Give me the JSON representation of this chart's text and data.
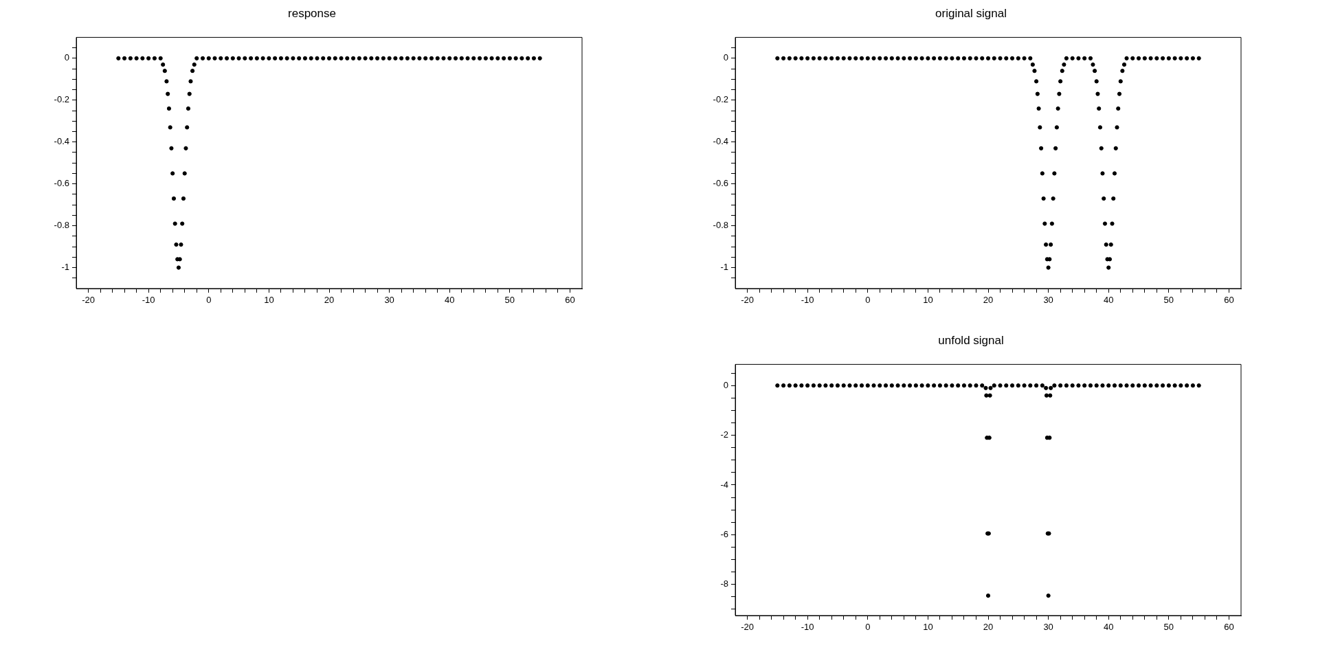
{
  "chart_data": [
    {
      "type": "scatter",
      "title": "response",
      "color": "#000000",
      "marker": "circle",
      "xlim": [
        -22,
        62
      ],
      "ylim": [
        -1.1,
        0.1
      ],
      "xticks": [
        -20,
        {
          "value": -18,
          "label": null
        },
        {
          "value": -16,
          "label": null
        },
        {
          "value": -14,
          "label": null
        },
        {
          "value": -12,
          "label": null
        },
        -10,
        {
          "value": -8,
          "label": null
        },
        {
          "value": -6,
          "label": null
        },
        {
          "value": -4,
          "label": null
        },
        {
          "value": -2,
          "label": null
        },
        0,
        {
          "value": 2,
          "label": null
        },
        {
          "value": 4,
          "label": null
        },
        {
          "value": 6,
          "label": null
        },
        {
          "value": 8,
          "label": null
        },
        10,
        {
          "value": 12,
          "label": null
        },
        {
          "value": 14,
          "label": null
        },
        {
          "value": 16,
          "label": null
        },
        {
          "value": 18,
          "label": null
        },
        20,
        {
          "value": 22,
          "label": null
        },
        {
          "value": 24,
          "label": null
        },
        {
          "value": 26,
          "label": null
        },
        {
          "value": 28,
          "label": null
        },
        30,
        {
          "value": 32,
          "label": null
        },
        {
          "value": 34,
          "label": null
        },
        {
          "value": 36,
          "label": null
        },
        {
          "value": 38,
          "label": null
        },
        40,
        {
          "value": 42,
          "label": null
        },
        {
          "value": 44,
          "label": null
        },
        {
          "value": 46,
          "label": null
        },
        {
          "value": 48,
          "label": null
        },
        50,
        {
          "value": 52,
          "label": null
        },
        {
          "value": 54,
          "label": null
        },
        {
          "value": 56,
          "label": null
        },
        {
          "value": 58,
          "label": null
        },
        60
      ],
      "yticks": [
        {
          "value": -1.05,
          "label": null
        },
        -1,
        {
          "value": -0.95,
          "label": null
        },
        {
          "value": -0.9,
          "label": null
        },
        {
          "value": -0.85,
          "label": null
        },
        -0.8,
        {
          "value": -0.75,
          "label": null
        },
        {
          "value": -0.7,
          "label": null
        },
        {
          "value": -0.65,
          "label": null
        },
        -0.6,
        {
          "value": -0.55,
          "label": null
        },
        {
          "value": -0.5,
          "label": null
        },
        {
          "value": -0.45,
          "label": null
        },
        -0.4,
        {
          "value": -0.35,
          "label": null
        },
        {
          "value": -0.3,
          "label": null
        },
        {
          "value": -0.25,
          "label": null
        },
        -0.2,
        {
          "value": -0.15,
          "label": null
        },
        {
          "value": -0.1,
          "label": null
        },
        {
          "value": -0.05,
          "label": null
        },
        0,
        {
          "value": 0.05,
          "label": null
        }
      ],
      "x": [
        -15,
        -14,
        -13,
        -12,
        -11,
        -10,
        -9,
        -8,
        -7.6,
        -7.3,
        -7,
        -6.8,
        -6.6,
        -6.4,
        -6.2,
        -6,
        -5.8,
        -5.6,
        -5.4,
        -5.2,
        -5,
        -4.8,
        -4.6,
        -4.4,
        -4.2,
        -4,
        -3.8,
        -3.6,
        -3.4,
        -3.2,
        -3,
        -2.7,
        -2.4,
        -2,
        -1,
        0,
        1,
        2,
        3,
        4,
        5,
        6,
        7,
        8,
        9,
        10,
        11,
        12,
        13,
        14,
        15,
        16,
        17,
        18,
        19,
        20,
        21,
        22,
        23,
        24,
        25,
        26,
        27,
        28,
        29,
        30,
        31,
        32,
        33,
        34,
        35,
        36,
        37,
        38,
        39,
        40,
        41,
        42,
        43,
        44,
        45,
        46,
        47,
        48,
        49,
        50,
        51,
        52,
        53,
        54,
        55
      ],
      "values": [
        0,
        0,
        0,
        0,
        0,
        0,
        0,
        0,
        -0.03,
        -0.06,
        -0.11,
        -0.17,
        -0.24,
        -0.33,
        -0.43,
        -0.55,
        -0.67,
        -0.79,
        -0.89,
        -0.96,
        -1,
        -0.96,
        -0.89,
        -0.79,
        -0.67,
        -0.55,
        -0.43,
        -0.33,
        -0.24,
        -0.17,
        -0.11,
        -0.06,
        -0.03,
        0,
        0,
        0,
        0,
        0,
        0,
        0,
        0,
        0,
        0,
        0,
        0,
        0,
        0,
        0,
        0,
        0,
        0,
        0,
        0,
        0,
        0,
        0,
        0,
        0,
        0,
        0,
        0,
        0,
        0,
        0,
        0,
        0,
        0,
        0,
        0,
        0,
        0,
        0,
        0,
        0,
        0,
        0,
        0,
        0,
        0,
        0,
        0,
        0,
        0,
        0,
        0,
        0,
        0,
        0,
        0,
        0,
        0
      ]
    },
    {
      "type": "scatter",
      "title": "original signal",
      "color": "#000000",
      "marker": "circle",
      "xlim": [
        -22,
        62
      ],
      "ylim": [
        -1.1,
        0.1
      ],
      "xticks": [
        -20,
        {
          "value": -18,
          "label": null
        },
        {
          "value": -16,
          "label": null
        },
        {
          "value": -14,
          "label": null
        },
        {
          "value": -12,
          "label": null
        },
        -10,
        {
          "value": -8,
          "label": null
        },
        {
          "value": -6,
          "label": null
        },
        {
          "value": -4,
          "label": null
        },
        {
          "value": -2,
          "label": null
        },
        0,
        {
          "value": 2,
          "label": null
        },
        {
          "value": 4,
          "label": null
        },
        {
          "value": 6,
          "label": null
        },
        {
          "value": 8,
          "label": null
        },
        10,
        {
          "value": 12,
          "label": null
        },
        {
          "value": 14,
          "label": null
        },
        {
          "value": 16,
          "label": null
        },
        {
          "value": 18,
          "label": null
        },
        20,
        {
          "value": 22,
          "label": null
        },
        {
          "value": 24,
          "label": null
        },
        {
          "value": 26,
          "label": null
        },
        {
          "value": 28,
          "label": null
        },
        30,
        {
          "value": 32,
          "label": null
        },
        {
          "value": 34,
          "label": null
        },
        {
          "value": 36,
          "label": null
        },
        {
          "value": 38,
          "label": null
        },
        40,
        {
          "value": 42,
          "label": null
        },
        {
          "value": 44,
          "label": null
        },
        {
          "value": 46,
          "label": null
        },
        {
          "value": 48,
          "label": null
        },
        50,
        {
          "value": 52,
          "label": null
        },
        {
          "value": 54,
          "label": null
        },
        {
          "value": 56,
          "label": null
        },
        {
          "value": 58,
          "label": null
        },
        60
      ],
      "yticks": [
        {
          "value": -1.05,
          "label": null
        },
        -1,
        {
          "value": -0.95,
          "label": null
        },
        {
          "value": -0.9,
          "label": null
        },
        {
          "value": -0.85,
          "label": null
        },
        -0.8,
        {
          "value": -0.75,
          "label": null
        },
        {
          "value": -0.7,
          "label": null
        },
        {
          "value": -0.65,
          "label": null
        },
        -0.6,
        {
          "value": -0.55,
          "label": null
        },
        {
          "value": -0.5,
          "label": null
        },
        {
          "value": -0.45,
          "label": null
        },
        -0.4,
        {
          "value": -0.35,
          "label": null
        },
        {
          "value": -0.3,
          "label": null
        },
        {
          "value": -0.25,
          "label": null
        },
        -0.2,
        {
          "value": -0.15,
          "label": null
        },
        {
          "value": -0.1,
          "label": null
        },
        {
          "value": -0.05,
          "label": null
        },
        0,
        {
          "value": 0.05,
          "label": null
        }
      ],
      "x": [
        -15,
        -14,
        -13,
        -12,
        -11,
        -10,
        -9,
        -8,
        -7,
        -6,
        -5,
        -4,
        -3,
        -2,
        -1,
        0,
        1,
        2,
        3,
        4,
        5,
        6,
        7,
        8,
        9,
        10,
        11,
        12,
        13,
        14,
        15,
        16,
        17,
        18,
        19,
        20,
        21,
        22,
        23,
        24,
        25,
        26,
        27,
        27.4,
        27.7,
        28,
        28.2,
        28.4,
        28.6,
        28.8,
        29,
        29.2,
        29.4,
        29.6,
        29.8,
        30,
        30.2,
        30.4,
        30.6,
        30.8,
        31,
        31.2,
        31.4,
        31.6,
        31.8,
        32,
        32.3,
        32.6,
        33,
        34,
        35,
        36,
        37,
        37.4,
        37.7,
        38,
        38.2,
        38.4,
        38.6,
        38.8,
        39,
        39.2,
        39.4,
        39.6,
        39.8,
        40,
        40.2,
        40.4,
        40.6,
        40.8,
        41,
        41.2,
        41.4,
        41.6,
        41.8,
        42,
        42.3,
        42.6,
        43,
        44,
        45,
        46,
        47,
        48,
        49,
        50,
        51,
        52,
        53,
        54,
        55
      ],
      "values": [
        0,
        0,
        0,
        0,
        0,
        0,
        0,
        0,
        0,
        0,
        0,
        0,
        0,
        0,
        0,
        0,
        0,
        0,
        0,
        0,
        0,
        0,
        0,
        0,
        0,
        0,
        0,
        0,
        0,
        0,
        0,
        0,
        0,
        0,
        0,
        0,
        0,
        0,
        0,
        0,
        0,
        0,
        0,
        -0.03,
        -0.06,
        -0.11,
        -0.17,
        -0.24,
        -0.33,
        -0.43,
        -0.55,
        -0.67,
        -0.79,
        -0.89,
        -0.96,
        -1,
        -0.96,
        -0.89,
        -0.79,
        -0.67,
        -0.55,
        -0.43,
        -0.33,
        -0.24,
        -0.17,
        -0.11,
        -0.06,
        -0.03,
        0,
        0,
        0,
        0,
        0,
        -0.03,
        -0.06,
        -0.11,
        -0.17,
        -0.24,
        -0.33,
        -0.43,
        -0.55,
        -0.67,
        -0.79,
        -0.89,
        -0.96,
        -1,
        -0.96,
        -0.89,
        -0.79,
        -0.67,
        -0.55,
        -0.43,
        -0.33,
        -0.24,
        -0.17,
        -0.11,
        -0.06,
        -0.03,
        0,
        0,
        0,
        0,
        0,
        0,
        0,
        0,
        0,
        0,
        0,
        0,
        0
      ]
    },
    {
      "type": "scatter",
      "title": "unfold signal",
      "color": "#000000",
      "marker": "circle",
      "xlim": [
        -22,
        62
      ],
      "ylim": [
        -9.25,
        0.85
      ],
      "xticks": [
        -20,
        {
          "value": -18,
          "label": null
        },
        {
          "value": -16,
          "label": null
        },
        {
          "value": -14,
          "label": null
        },
        {
          "value": -12,
          "label": null
        },
        -10,
        {
          "value": -8,
          "label": null
        },
        {
          "value": -6,
          "label": null
        },
        {
          "value": -4,
          "label": null
        },
        {
          "value": -2,
          "label": null
        },
        0,
        {
          "value": 2,
          "label": null
        },
        {
          "value": 4,
          "label": null
        },
        {
          "value": 6,
          "label": null
        },
        {
          "value": 8,
          "label": null
        },
        10,
        {
          "value": 12,
          "label": null
        },
        {
          "value": 14,
          "label": null
        },
        {
          "value": 16,
          "label": null
        },
        {
          "value": 18,
          "label": null
        },
        20,
        {
          "value": 22,
          "label": null
        },
        {
          "value": 24,
          "label": null
        },
        {
          "value": 26,
          "label": null
        },
        {
          "value": 28,
          "label": null
        },
        30,
        {
          "value": 32,
          "label": null
        },
        {
          "value": 34,
          "label": null
        },
        {
          "value": 36,
          "label": null
        },
        {
          "value": 38,
          "label": null
        },
        40,
        {
          "value": 42,
          "label": null
        },
        {
          "value": 44,
          "label": null
        },
        {
          "value": 46,
          "label": null
        },
        {
          "value": 48,
          "label": null
        },
        50,
        {
          "value": 52,
          "label": null
        },
        {
          "value": 54,
          "label": null
        },
        {
          "value": 56,
          "label": null
        },
        {
          "value": 58,
          "label": null
        },
        60
      ],
      "yticks": [
        {
          "value": -9,
          "label": null
        },
        {
          "value": -8.5,
          "label": null
        },
        -8,
        {
          "value": -7.5,
          "label": null
        },
        {
          "value": -7,
          "label": null
        },
        {
          "value": -6.5,
          "label": null
        },
        -6,
        {
          "value": -5.5,
          "label": null
        },
        {
          "value": -5,
          "label": null
        },
        {
          "value": -4.5,
          "label": null
        },
        -4,
        {
          "value": -3.5,
          "label": null
        },
        {
          "value": -3,
          "label": null
        },
        {
          "value": -2.5,
          "label": null
        },
        -2,
        {
          "value": -1.5,
          "label": null
        },
        {
          "value": -1,
          "label": null
        },
        {
          "value": -0.5,
          "label": null
        },
        0,
        {
          "value": 0.5,
          "label": null
        }
      ],
      "x": [
        -15,
        -14,
        -13,
        -12,
        -11,
        -10,
        -9,
        -8,
        -7,
        -6,
        -5,
        -4,
        -3,
        -2,
        -1,
        0,
        1,
        2,
        3,
        4,
        5,
        6,
        7,
        8,
        9,
        10,
        11,
        12,
        13,
        14,
        15,
        16,
        17,
        18,
        19,
        19.6,
        19.7,
        19.8,
        19.9,
        20,
        20.1,
        20.2,
        20.3,
        20.4,
        21,
        22,
        23,
        24,
        25,
        26,
        27,
        28,
        29,
        29.6,
        29.7,
        29.8,
        29.9,
        30,
        30.1,
        30.2,
        30.3,
        30.4,
        31,
        32,
        33,
        34,
        35,
        36,
        37,
        38,
        39,
        40,
        41,
        42,
        43,
        44,
        45,
        46,
        47,
        48,
        49,
        50,
        51,
        52,
        53,
        54,
        55
      ],
      "values": [
        0,
        0,
        0,
        0,
        0,
        0,
        0,
        0,
        0,
        0,
        0,
        0,
        0,
        0,
        0,
        0,
        0,
        0,
        0,
        0,
        0,
        0,
        0,
        0,
        0,
        0,
        0,
        0,
        0,
        0,
        0,
        0,
        0,
        0,
        0,
        -0.1,
        -0.4,
        -2.1,
        -5.95,
        -8.45,
        -5.95,
        -2.1,
        -0.4,
        -0.1,
        0,
        0,
        0,
        0,
        0,
        0,
        0,
        0,
        0,
        -0.1,
        -0.4,
        -2.1,
        -5.95,
        -8.45,
        -5.95,
        -2.1,
        -0.4,
        -0.1,
        0,
        0,
        0,
        0,
        0,
        0,
        0,
        0,
        0,
        0,
        0,
        0,
        0,
        0,
        0,
        0,
        0,
        0,
        0,
        0,
        0,
        0,
        0,
        0,
        0
      ]
    }
  ]
}
